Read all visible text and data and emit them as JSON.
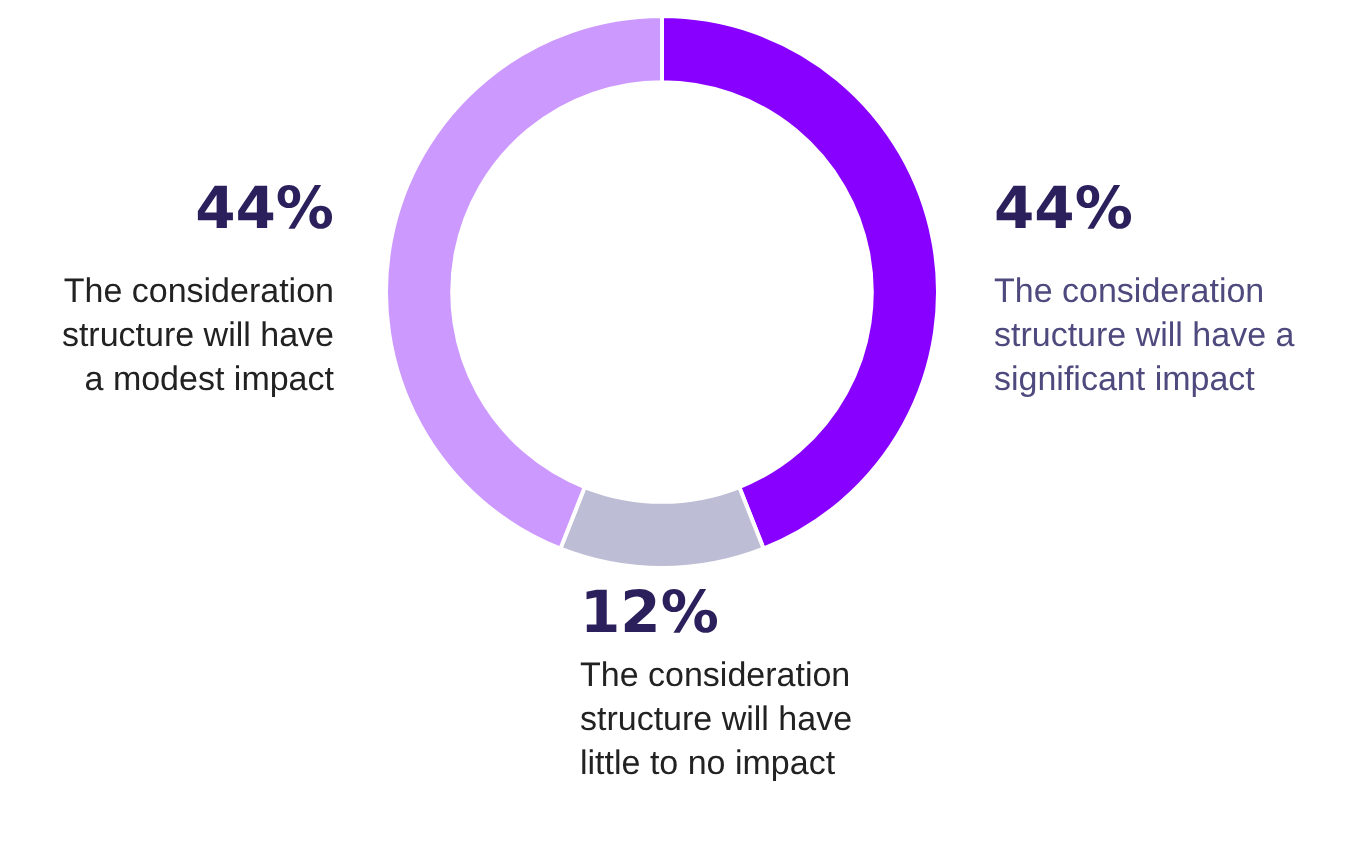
{
  "chart_data": {
    "type": "donut",
    "categories": [
      "The consideration structure will have a significant impact",
      "The consideration structure will have little to no impact",
      "The consideration structure will have a modest impact"
    ],
    "values": [
      44,
      12,
      44
    ],
    "colors": [
      "#8800ff",
      "#bdbdd5",
      "#cc99ff"
    ],
    "value_labels": [
      "44%",
      "12%",
      "44%"
    ],
    "legend": false
  }
}
